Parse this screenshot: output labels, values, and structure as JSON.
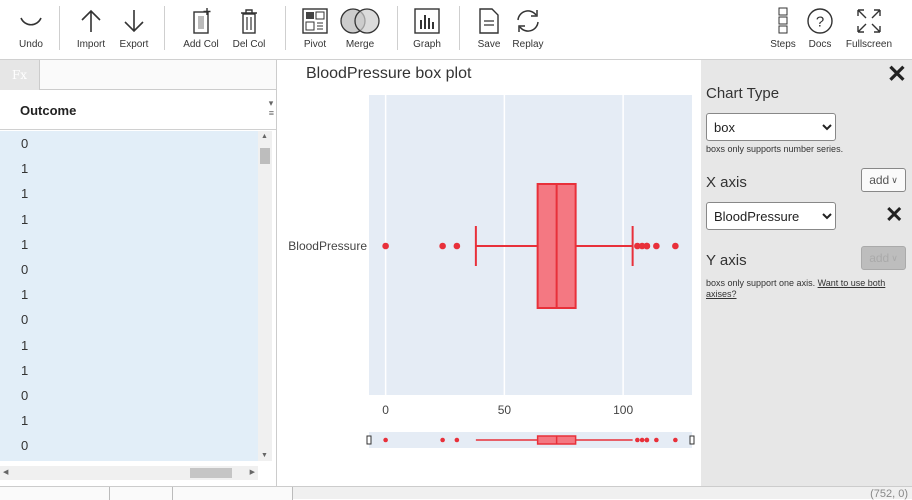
{
  "toolbar": {
    "undo": "Undo",
    "import": "Import",
    "export": "Export",
    "add_col": "Add Col",
    "del_col": "Del Col",
    "pivot": "Pivot",
    "merge": "Merge",
    "graph": "Graph",
    "save": "Save",
    "replay": "Replay",
    "steps": "Steps",
    "docs": "Docs",
    "fullscreen": "Fullscreen"
  },
  "grid": {
    "fx_label": "Fx",
    "column_header": "Outcome",
    "rows": [
      "0",
      "1",
      "1",
      "1",
      "1",
      "0",
      "1",
      "0",
      "1",
      "1",
      "0",
      "1",
      "0",
      "1"
    ]
  },
  "chart": {
    "title": "BloodPressure box plot"
  },
  "chart_data": {
    "type": "box",
    "orientation": "horizontal",
    "category_label": "BloodPressure",
    "x_ticks": [
      "0",
      "50",
      "100"
    ],
    "xlim": [
      -7,
      129
    ],
    "box": {
      "lower_fence": 38,
      "q1": 64,
      "median": 72,
      "q3": 80,
      "upper_fence": 104
    },
    "outliers": [
      0,
      24,
      30,
      106,
      108,
      110,
      110,
      114,
      122
    ],
    "color": "#e8303a",
    "fill": "#f47882",
    "background": "#e5ecf5",
    "grid": true
  },
  "side": {
    "chart_type_label": "Chart Type",
    "chart_type_value": "box",
    "chart_type_note": "boxs only supports number series.",
    "x_axis_label": "X axis",
    "add_label": "add",
    "x_axis_value": "BloodPressure",
    "y_axis_label": "Y axis",
    "y_axis_note": "boxs only support one axis.",
    "y_axis_link": "Want to use both axises?"
  },
  "footer": {
    "coords": "(752, 0)"
  }
}
